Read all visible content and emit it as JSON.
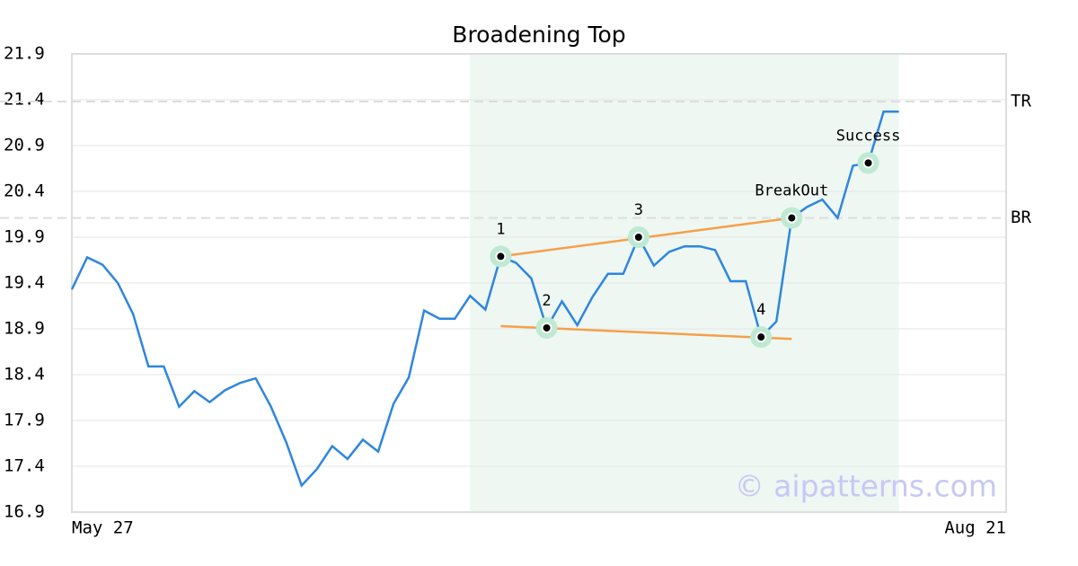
{
  "chart_data": {
    "type": "line",
    "title": "Broadening Top",
    "values": [
      19.33,
      19.68,
      19.6,
      19.4,
      19.06,
      18.49,
      18.49,
      18.05,
      18.22,
      18.1,
      18.23,
      18.31,
      18.36,
      18.05,
      17.66,
      17.19,
      17.37,
      17.62,
      17.48,
      17.69,
      17.56,
      18.08,
      18.37,
      19.1,
      19.01,
      19.01,
      19.26,
      19.11,
      19.69,
      19.62,
      19.45,
      18.91,
      19.2,
      18.94,
      19.25,
      19.5,
      19.5,
      19.9,
      19.59,
      19.74,
      19.8,
      19.8,
      19.76,
      19.42,
      19.42,
      18.81,
      18.98,
      20.11,
      20.23,
      20.31,
      20.11,
      20.68,
      20.71,
      21.27,
      21.27
    ],
    "color": "#2e86de",
    "xlim": [
      0,
      61
    ],
    "xticks": [
      {
        "value": 0,
        "label": "May 27"
      },
      {
        "value": 61,
        "label": "Aug 21"
      }
    ],
    "ylim": [
      16.9,
      21.9
    ],
    "yticks": [
      16.9,
      17.4,
      17.9,
      18.4,
      18.9,
      19.4,
      19.9,
      20.4,
      20.9,
      21.4,
      21.9
    ],
    "grid": true,
    "shaded_range": [
      26,
      54
    ],
    "hlines": [
      {
        "label": "TR",
        "value": 21.38
      },
      {
        "label": "BR",
        "value": 20.11
      }
    ],
    "trendlines": [
      {
        "x": [
          28,
          47
        ],
        "y": [
          19.69,
          20.11
        ],
        "color": "#f4a04a"
      },
      {
        "x": [
          28,
          47
        ],
        "y": [
          18.93,
          18.79
        ],
        "color": "#f4a04a"
      }
    ],
    "points": [
      {
        "label": "1",
        "x": 28,
        "y": 19.69
      },
      {
        "label": "2",
        "x": 31,
        "y": 18.91
      },
      {
        "label": "3",
        "x": 37,
        "y": 19.9
      },
      {
        "label": "4",
        "x": 45,
        "y": 18.81
      },
      {
        "label": "BreakOut",
        "x": 47,
        "y": 20.11
      },
      {
        "label": "Success",
        "x": 52,
        "y": 20.71
      }
    ],
    "watermark": "© aipatterns.com"
  }
}
